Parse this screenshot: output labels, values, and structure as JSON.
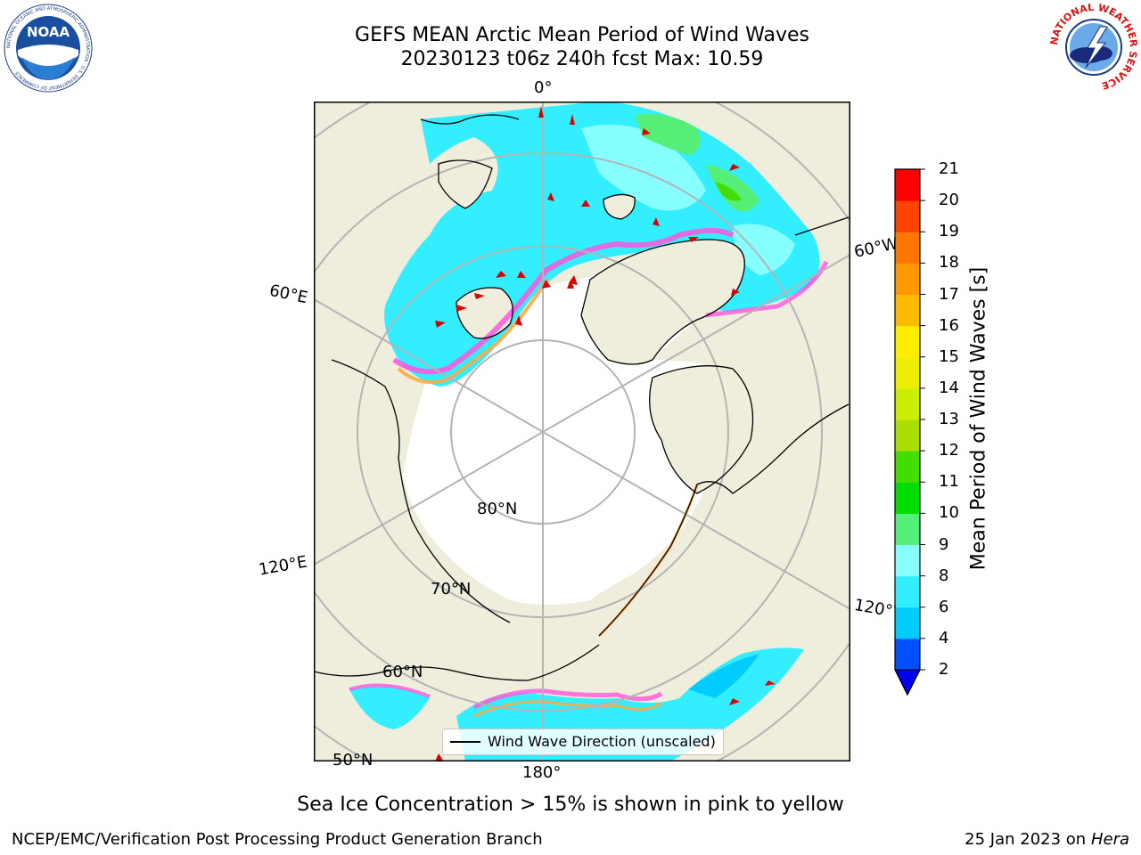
{
  "header": {
    "title": "GEFS MEAN Arctic Mean Period of Wind Waves",
    "subtitle": "20230123 t06z 240h fcst   Max: 10.59"
  },
  "logos": {
    "noaa": {
      "text": "NOAA",
      "ring_text": "NATIONAL OCEANIC AND ATMOSPHERIC ADMINISTRATION · U.S. DEPARTMENT OF COMMERCE"
    },
    "nws": {
      "ring_text": "NATIONAL WEATHER SERVICE"
    }
  },
  "map": {
    "projection": "north-polar-stereographic",
    "grid_labels": {
      "lon_0": "0°",
      "lon_60w": "60°W",
      "lon_60e": "60°E",
      "lon_120e": "120°E",
      "lon_120w": "120°W",
      "lon_180": "180°",
      "lat_80": "80°N",
      "lat_70": "70°N",
      "lat_60": "60°N",
      "lat_50": "50°N"
    },
    "colors": {
      "land": "#efeedc",
      "ocean_ice": "#ffffff",
      "grid": "#b4b4b4",
      "arrow": "#dd0000",
      "ice_edge_pink": "#ff55dd",
      "ice_edge_orange": "#ffaa44"
    },
    "legend": {
      "label": "Wind Wave Direction (unscaled)"
    }
  },
  "colorbar": {
    "label": "Mean Period of Wind Waves [s]",
    "ticks": [
      "2",
      "4",
      "6",
      "8",
      "9",
      "10",
      "11",
      "12",
      "13",
      "14",
      "15",
      "16",
      "17",
      "18",
      "19",
      "20",
      "21"
    ],
    "colors": [
      "#0050ff",
      "#00ccff",
      "#33eeff",
      "#88ffff",
      "#55ee77",
      "#00dd00",
      "#44dd00",
      "#aadd00",
      "#ccee00",
      "#eeee00",
      "#ffee00",
      "#ffbb00",
      "#ff9900",
      "#ff7700",
      "#ff4400",
      "#ff0000"
    ],
    "extend_min_color": "#0000ee"
  },
  "caption": "Sea Ice Concentration > 15% is shown in pink to yellow",
  "footer": {
    "left": "NCEP/EMC/Verification Post Processing Product Generation Branch",
    "right_prefix": "25 Jan 2023 on ",
    "right_machine": "Hera"
  }
}
